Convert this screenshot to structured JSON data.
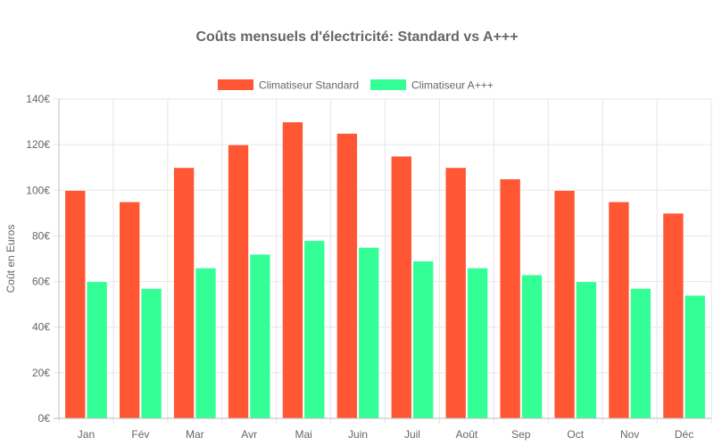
{
  "chart_data": {
    "type": "bar",
    "title": "Coûts mensuels d'électricité: Standard vs A+++",
    "xlabel": "",
    "ylabel": "Coût en Euros",
    "categories": [
      "Jan",
      "Fév",
      "Mar",
      "Avr",
      "Mai",
      "Juin",
      "Juil",
      "Août",
      "Sep",
      "Oct",
      "Nov",
      "Déc"
    ],
    "series": [
      {
        "name": "Climatiseur Standard",
        "color": "#ff5733",
        "values": [
          100,
          95,
          110,
          120,
          130,
          125,
          115,
          110,
          105,
          100,
          95,
          90
        ]
      },
      {
        "name": "Climatiseur A+++",
        "color": "#33ff96",
        "values": [
          60,
          57,
          66,
          72,
          78,
          75,
          69,
          66,
          63,
          60,
          57,
          54
        ]
      }
    ],
    "ylim": [
      0,
      140
    ],
    "yticks": [
      "0€",
      "20€",
      "40€",
      "60€",
      "80€",
      "100€",
      "120€",
      "140€"
    ],
    "grid": true,
    "legend_position": "top-center"
  }
}
